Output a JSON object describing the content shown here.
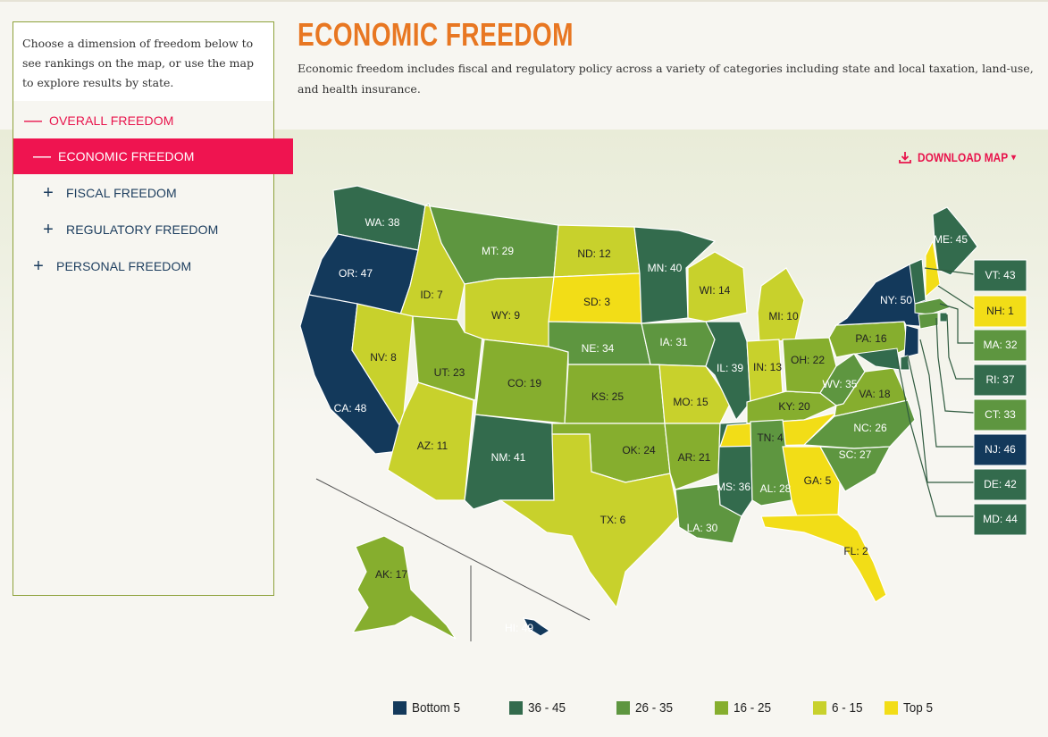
{
  "sidebar": {
    "intro": "Choose a dimension of freedom below to see rankings on the map, or use the map to explore results by state.",
    "items": [
      {
        "symbol": "—",
        "label": "OVERALL FREEDOM"
      },
      {
        "symbol": "—",
        "label": "ECONOMIC FREEDOM"
      },
      {
        "symbol": "+",
        "label": "FISCAL FREEDOM"
      },
      {
        "symbol": "+",
        "label": "REGULATORY FREEDOM"
      },
      {
        "symbol": "+",
        "label": "PERSONAL FREEDOM"
      }
    ]
  },
  "header": {
    "title": "ECONOMIC FREEDOM",
    "description": "Economic freedom includes fiscal and regulatory policy across a variety of categories including state and local taxation, land-use, and health insurance."
  },
  "download": {
    "icon": "download-icon",
    "label": "DOWNLOAD MAP",
    "caret": "▾"
  },
  "colors": {
    "bottom5": "#13395b",
    "r36_45": "#336b4d",
    "r26_35": "#5e9640",
    "r16_25": "#86ae2e",
    "r6_15": "#c8d12c",
    "top5": "#f2dd17",
    "accent": "#ef1450",
    "title": "#e87722"
  },
  "states": [
    {
      "abbr": "WA",
      "label": "WA: 38",
      "rank": 38
    },
    {
      "abbr": "OR",
      "label": "OR: 47",
      "rank": 47
    },
    {
      "abbr": "CA",
      "label": "CA: 48",
      "rank": 48
    },
    {
      "abbr": "ID",
      "label": "ID: 7",
      "rank": 7
    },
    {
      "abbr": "NV",
      "label": "NV: 8",
      "rank": 8
    },
    {
      "abbr": "AZ",
      "label": "AZ: 11",
      "rank": 11
    },
    {
      "abbr": "UT",
      "label": "UT: 23",
      "rank": 23
    },
    {
      "abbr": "MT",
      "label": "MT: 29",
      "rank": 29
    },
    {
      "abbr": "WY",
      "label": "WY: 9",
      "rank": 9
    },
    {
      "abbr": "CO",
      "label": "CO: 19",
      "rank": 19
    },
    {
      "abbr": "NM",
      "label": "NM: 41",
      "rank": 41
    },
    {
      "abbr": "ND",
      "label": "ND: 12",
      "rank": 12
    },
    {
      "abbr": "SD",
      "label": "SD: 3",
      "rank": 3
    },
    {
      "abbr": "NE",
      "label": "NE: 34",
      "rank": 34
    },
    {
      "abbr": "KS",
      "label": "KS: 25",
      "rank": 25
    },
    {
      "abbr": "OK",
      "label": "OK: 24",
      "rank": 24
    },
    {
      "abbr": "TX",
      "label": "TX: 6",
      "rank": 6
    },
    {
      "abbr": "MN",
      "label": "MN: 40",
      "rank": 40
    },
    {
      "abbr": "IA",
      "label": "IA: 31",
      "rank": 31
    },
    {
      "abbr": "MO",
      "label": "MO: 15",
      "rank": 15
    },
    {
      "abbr": "AR",
      "label": "AR: 21",
      "rank": 21
    },
    {
      "abbr": "LA",
      "label": "LA: 30",
      "rank": 30
    },
    {
      "abbr": "WI",
      "label": "WI: 14",
      "rank": 14
    },
    {
      "abbr": "IL",
      "label": "IL: 39",
      "rank": 39
    },
    {
      "abbr": "MS",
      "label": "MS: 36",
      "rank": 36
    },
    {
      "abbr": "MI",
      "label": "MI: 10",
      "rank": 10
    },
    {
      "abbr": "IN",
      "label": "IN: 13",
      "rank": 13
    },
    {
      "abbr": "KY",
      "label": "KY: 20",
      "rank": 20
    },
    {
      "abbr": "TN",
      "label": "TN: 4",
      "rank": 4
    },
    {
      "abbr": "AL",
      "label": "AL: 28",
      "rank": 28
    },
    {
      "abbr": "GA",
      "label": "GA: 5",
      "rank": 5
    },
    {
      "abbr": "FL",
      "label": "FL: 2",
      "rank": 2
    },
    {
      "abbr": "OH",
      "label": "OH: 22",
      "rank": 22
    },
    {
      "abbr": "WV",
      "label": "WV: 35",
      "rank": 35
    },
    {
      "abbr": "VA",
      "label": "VA: 18",
      "rank": 18
    },
    {
      "abbr": "NC",
      "label": "NC: 26",
      "rank": 26
    },
    {
      "abbr": "SC",
      "label": "SC: 27",
      "rank": 27
    },
    {
      "abbr": "PA",
      "label": "PA: 16",
      "rank": 16
    },
    {
      "abbr": "NY",
      "label": "NY: 50",
      "rank": 50
    },
    {
      "abbr": "ME",
      "label": "ME: 45",
      "rank": 45
    },
    {
      "abbr": "AK",
      "label": "AK: 17",
      "rank": 17
    },
    {
      "abbr": "HI",
      "label": "HI: 49",
      "rank": 49
    }
  ],
  "callouts": [
    {
      "abbr": "VT",
      "label": "VT: 43",
      "rank": 43
    },
    {
      "abbr": "NH",
      "label": "NH: 1",
      "rank": 1
    },
    {
      "abbr": "MA",
      "label": "MA: 32",
      "rank": 32
    },
    {
      "abbr": "RI",
      "label": "RI: 37",
      "rank": 37
    },
    {
      "abbr": "CT",
      "label": "CT: 33",
      "rank": 33
    },
    {
      "abbr": "NJ",
      "label": "NJ: 46",
      "rank": 46
    },
    {
      "abbr": "DE",
      "label": "DE: 42",
      "rank": 42
    },
    {
      "abbr": "MD",
      "label": "MD: 44",
      "rank": 44
    }
  ],
  "legend": [
    {
      "label": "Bottom 5",
      "color": "#13395b"
    },
    {
      "label": "36 - 45",
      "color": "#336b4d"
    },
    {
      "label": "26 - 35",
      "color": "#5e9640"
    },
    {
      "label": "16 - 25",
      "color": "#86ae2e"
    },
    {
      "label": "6 - 15",
      "color": "#c8d12c"
    },
    {
      "label": "Top 5",
      "color": "#f2dd17"
    }
  ]
}
